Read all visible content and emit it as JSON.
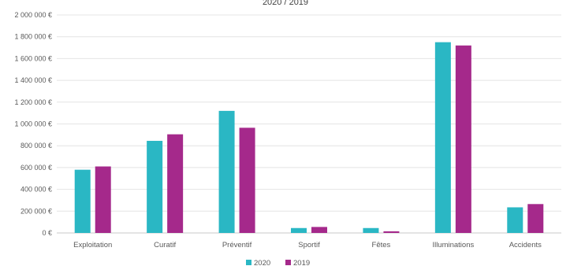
{
  "chart_data": {
    "type": "bar",
    "title": "2020 / 2019",
    "xlabel": "",
    "ylabel": "",
    "categories": [
      "Exploitation",
      "Curatif",
      "Préventif",
      "Sportif",
      "Fêtes",
      "Illuminations",
      "Accidents"
    ],
    "series": [
      {
        "name": "2020",
        "color": "#2ab7c4",
        "values": [
          580000,
          845000,
          1120000,
          45000,
          45000,
          1750000,
          235000
        ]
      },
      {
        "name": "2019",
        "color": "#a5298b",
        "values": [
          610000,
          905000,
          965000,
          55000,
          15000,
          1720000,
          265000
        ]
      }
    ],
    "ylim": [
      0,
      2000000
    ],
    "yticks": [
      0,
      200000,
      400000,
      600000,
      800000,
      1000000,
      1200000,
      1400000,
      1600000,
      1800000,
      2000000
    ],
    "ytick_labels": [
      "0 €",
      "200 000 €",
      "400 000 €",
      "600 000 €",
      "800 000 €",
      "1 000 000 €",
      "1 200 000 €",
      "1 400 000 €",
      "1 600 000 €",
      "1 800 000 €",
      "2 000 000 €"
    ],
    "grid": true,
    "legend_position": "bottom",
    "gridline_color": "#e4e4e4",
    "axis_color": "#c8c8c8"
  }
}
